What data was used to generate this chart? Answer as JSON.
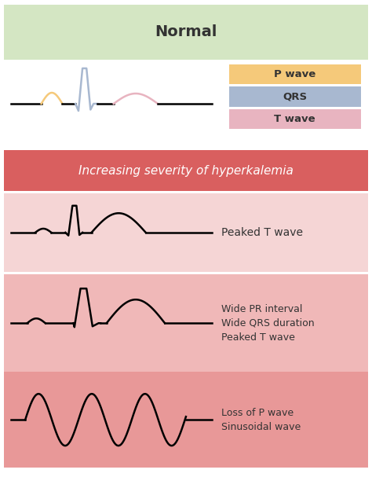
{
  "title_normal": "Normal",
  "title_severity": "Increasing severity of hyperkalemia",
  "legend_labels": [
    "P wave",
    "QRS",
    "T wave"
  ],
  "legend_colors": [
    "#f5c97a",
    "#a8b8d0",
    "#e8b4c0"
  ],
  "row_labels": [
    [
      "Peaked T wave"
    ],
    [
      "Wide PR interval",
      "Wide QRS duration",
      "Peaked T wave"
    ],
    [
      "Loss of P wave",
      "Sinusoidal wave"
    ]
  ],
  "bg_color": "#ffffff",
  "normal_header_color": "#d4e6c3",
  "severity_header_color": "#d95f5f",
  "row_colors": [
    "#f5d5d5",
    "#f0b8b8",
    "#e89898"
  ],
  "text_color_dark": "#333333",
  "text_color_white": "#ffffff"
}
